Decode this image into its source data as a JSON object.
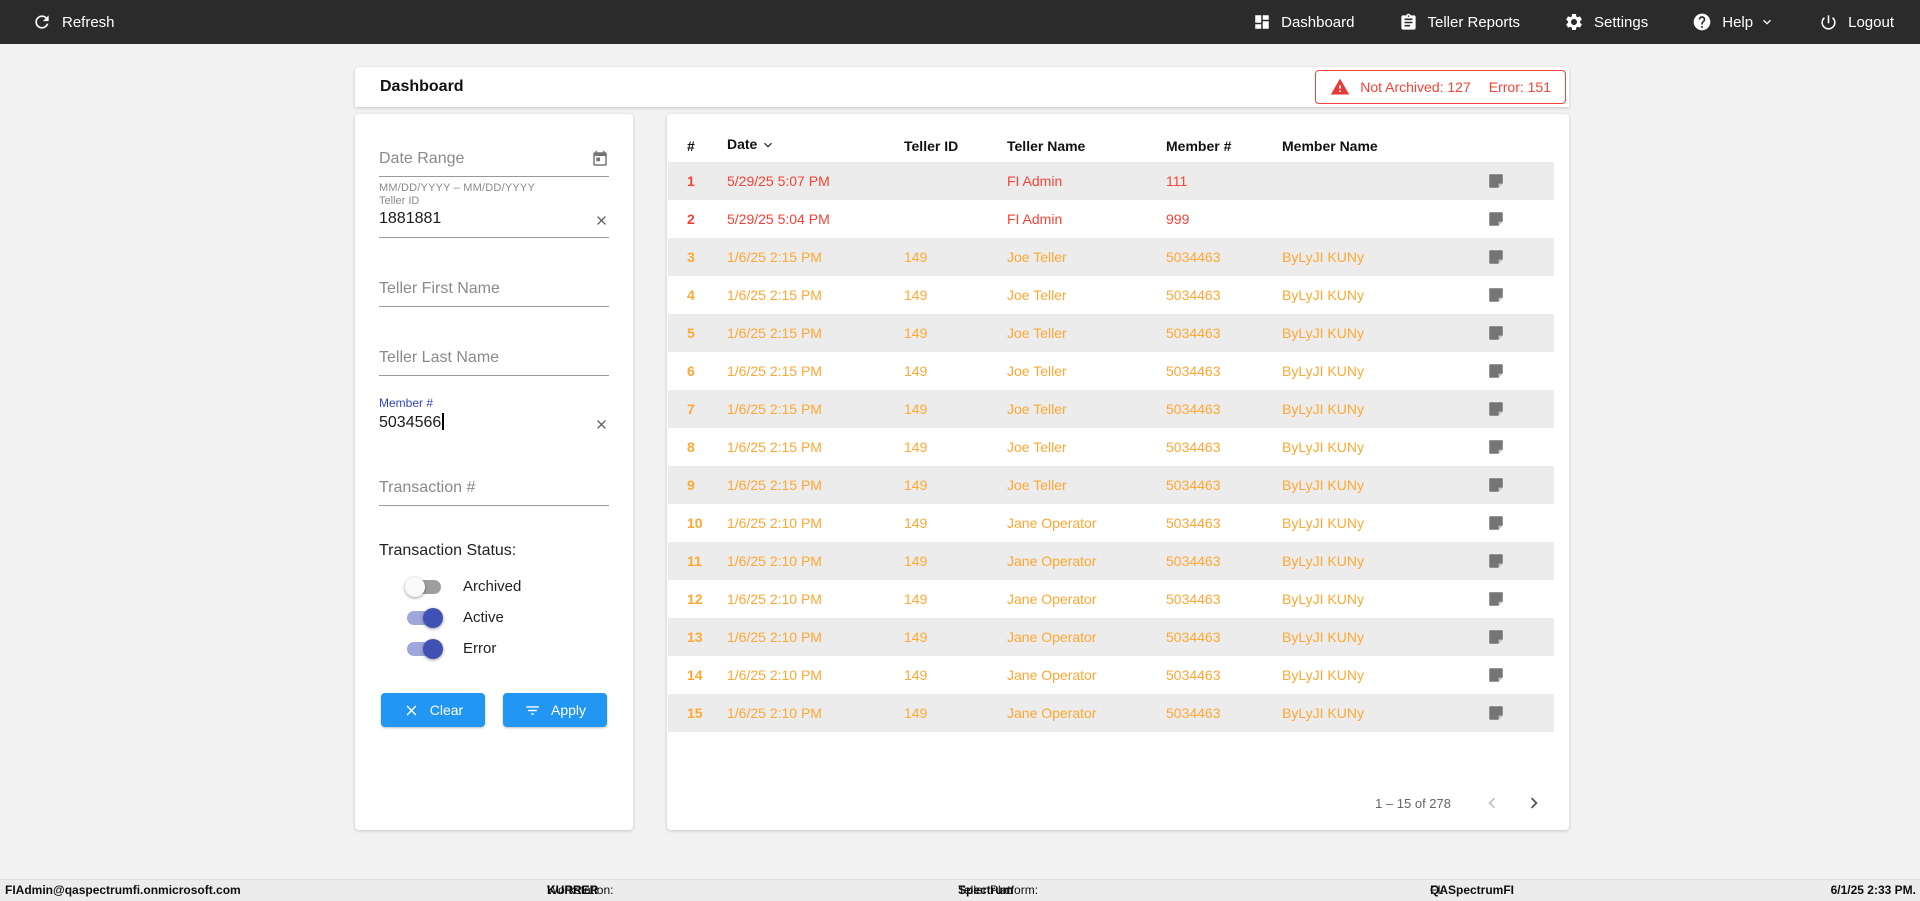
{
  "navbar": {
    "refresh_label": "Refresh",
    "items": [
      {
        "label": "Dashboard",
        "icon": "dashboard-icon"
      },
      {
        "label": "Teller Reports",
        "icon": "teller-reports-icon"
      },
      {
        "label": "Settings",
        "icon": "settings-gear-icon"
      },
      {
        "label": "Help",
        "icon": "help-icon"
      },
      {
        "label": "Logout",
        "icon": "power-icon"
      }
    ]
  },
  "header": {
    "title": "Dashboard",
    "alert": {
      "not_archived": "Not Archived: 127",
      "error": "Error: 151"
    }
  },
  "filters": {
    "date_range": {
      "placeholder": "Date Range",
      "helper": "MM/DD/YYYY – MM/DD/YYYY"
    },
    "teller_id": {
      "label": "Teller ID",
      "value": "1881881"
    },
    "teller_first_name": {
      "placeholder": "Teller First Name"
    },
    "teller_last_name": {
      "placeholder": "Teller Last Name"
    },
    "member_number": {
      "label": "Member #",
      "value": "5034566"
    },
    "transaction_number": {
      "placeholder": "Transaction #"
    },
    "status": {
      "label": "Transaction Status:",
      "toggles": [
        {
          "label": "Archived",
          "on": false
        },
        {
          "label": "Active",
          "on": true
        },
        {
          "label": "Error",
          "on": true
        }
      ]
    },
    "clear_label": "Clear",
    "apply_label": "Apply"
  },
  "table": {
    "columns": [
      "#",
      "Date",
      "Teller ID",
      "Teller Name",
      "Member #",
      "Member Name"
    ],
    "rows": [
      {
        "num": "1",
        "date": "5/29/25 5:07 PM",
        "teller_id": "",
        "teller_name": "FI Admin",
        "member_number": "111",
        "member_name": "",
        "state": "error"
      },
      {
        "num": "2",
        "date": "5/29/25 5:04 PM",
        "teller_id": "",
        "teller_name": "FI Admin",
        "member_number": "999",
        "member_name": "",
        "state": "error"
      },
      {
        "num": "3",
        "date": "1/6/25 2:15 PM",
        "teller_id": "149",
        "teller_name": "Joe Teller",
        "member_number": "5034463",
        "member_name": "ByLyJI KUNy",
        "state": "warn"
      },
      {
        "num": "4",
        "date": "1/6/25 2:15 PM",
        "teller_id": "149",
        "teller_name": "Joe Teller",
        "member_number": "5034463",
        "member_name": "ByLyJI KUNy",
        "state": "warn"
      },
      {
        "num": "5",
        "date": "1/6/25 2:15 PM",
        "teller_id": "149",
        "teller_name": "Joe Teller",
        "member_number": "5034463",
        "member_name": "ByLyJI KUNy",
        "state": "warn"
      },
      {
        "num": "6",
        "date": "1/6/25 2:15 PM",
        "teller_id": "149",
        "teller_name": "Joe Teller",
        "member_number": "5034463",
        "member_name": "ByLyJI KUNy",
        "state": "warn"
      },
      {
        "num": "7",
        "date": "1/6/25 2:15 PM",
        "teller_id": "149",
        "teller_name": "Joe Teller",
        "member_number": "5034463",
        "member_name": "ByLyJI KUNy",
        "state": "warn"
      },
      {
        "num": "8",
        "date": "1/6/25 2:15 PM",
        "teller_id": "149",
        "teller_name": "Joe Teller",
        "member_number": "5034463",
        "member_name": "ByLyJI KUNy",
        "state": "warn"
      },
      {
        "num": "9",
        "date": "1/6/25 2:15 PM",
        "teller_id": "149",
        "teller_name": "Joe Teller",
        "member_number": "5034463",
        "member_name": "ByLyJI KUNy",
        "state": "warn"
      },
      {
        "num": "10",
        "date": "1/6/25 2:10 PM",
        "teller_id": "149",
        "teller_name": "Jane Operator",
        "member_number": "5034463",
        "member_name": "ByLyJI KUNy",
        "state": "warn"
      },
      {
        "num": "11",
        "date": "1/6/25 2:10 PM",
        "teller_id": "149",
        "teller_name": "Jane Operator",
        "member_number": "5034463",
        "member_name": "ByLyJI KUNy",
        "state": "warn"
      },
      {
        "num": "12",
        "date": "1/6/25 2:10 PM",
        "teller_id": "149",
        "teller_name": "Jane Operator",
        "member_number": "5034463",
        "member_name": "ByLyJI KUNy",
        "state": "warn"
      },
      {
        "num": "13",
        "date": "1/6/25 2:10 PM",
        "teller_id": "149",
        "teller_name": "Jane Operator",
        "member_number": "5034463",
        "member_name": "ByLyJI KUNy",
        "state": "warn"
      },
      {
        "num": "14",
        "date": "1/6/25 2:10 PM",
        "teller_id": "149",
        "teller_name": "Jane Operator",
        "member_number": "5034463",
        "member_name": "ByLyJI KUNy",
        "state": "warn"
      },
      {
        "num": "15",
        "date": "1/6/25 2:10 PM",
        "teller_id": "149",
        "teller_name": "Jane Operator",
        "member_number": "5034463",
        "member_name": "ByLyJI KUNy",
        "state": "warn"
      }
    ],
    "pagination": {
      "range": "1 – 15 of 278"
    }
  },
  "footer": {
    "user": "FIAdmin@qaspectrumfi.onmicrosoft.com",
    "workstation_label": "Workstation:",
    "workstation": "KURRER",
    "platform_label": "Teller Platform:",
    "platform": "Spectrum",
    "fi_label": "FI:",
    "fi": "QASpectrumFI",
    "datetime": "6/1/25 2:33 PM."
  },
  "colors": {
    "navbar_dark": "#2b2b2b",
    "error_red": "#f44336",
    "warning_orange": "#ffa733",
    "accent_blue": "#2196f3",
    "toggle_on_indigo": "#3f51b5",
    "row_stripe": "#ececec"
  }
}
